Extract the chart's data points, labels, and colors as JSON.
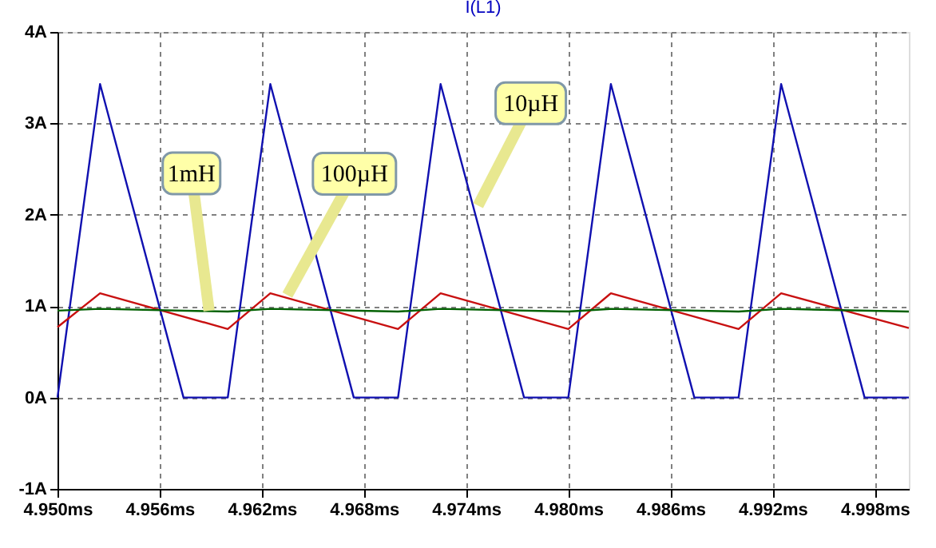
{
  "chart_data": {
    "type": "line",
    "title": "I(L1)",
    "series": [
      {
        "color": "#1010b0",
        "x": [
          4.95,
          4.9525,
          4.9574,
          4.96,
          4.9625,
          4.9674,
          4.97,
          4.9725,
          4.9774,
          4.98,
          4.9825,
          4.9874,
          4.99,
          4.9925,
          4.9974,
          5.0
        ],
        "values": [
          0,
          3.43,
          0,
          0,
          3.43,
          0,
          0,
          3.43,
          0,
          0,
          3.43,
          0,
          0,
          3.43,
          0,
          0
        ]
      },
      {
        "color": "#c81010",
        "x": [
          4.95,
          4.9525,
          4.96,
          4.9625,
          4.97,
          4.9725,
          4.98,
          4.9825,
          4.99,
          4.9925,
          5.0
        ],
        "values": [
          0.77,
          1.14,
          0.75,
          1.14,
          0.75,
          1.14,
          0.75,
          1.14,
          0.75,
          1.14,
          0.76
        ]
      },
      {
        "color": "#006000",
        "x": [
          4.95,
          4.9525,
          4.96,
          4.9625,
          4.97,
          4.9725,
          4.98,
          4.9825,
          4.99,
          4.9925,
          5.0
        ],
        "values": [
          0.95,
          0.97,
          0.94,
          0.97,
          0.94,
          0.97,
          0.94,
          0.97,
          0.94,
          0.97,
          0.94
        ]
      }
    ],
    "xlim": [
      4.95,
      5.0
    ],
    "xticks": [
      {
        "value": 4.95,
        "label": "4.950ms"
      },
      {
        "value": 4.956,
        "label": "4.956ms"
      },
      {
        "value": 4.962,
        "label": "4.962ms"
      },
      {
        "value": 4.968,
        "label": "4.968ms"
      },
      {
        "value": 4.974,
        "label": "4.974ms"
      },
      {
        "value": 4.98,
        "label": "4.980ms"
      },
      {
        "value": 4.986,
        "label": "4.986ms"
      },
      {
        "value": 4.992,
        "label": "4.992ms"
      },
      {
        "value": 4.998,
        "label": "4.998ms"
      }
    ],
    "ylim": [
      -1,
      4
    ],
    "yticks": [
      {
        "value": -1,
        "label": "-1A"
      },
      {
        "value": 0,
        "label": "0A"
      },
      {
        "value": 1,
        "label": "1A"
      },
      {
        "value": 2,
        "label": "2A"
      },
      {
        "value": 3,
        "label": "3A"
      },
      {
        "value": 4,
        "label": "4A"
      }
    ],
    "grid": true,
    "marker": "none",
    "line_style": "solid",
    "annotations": [
      {
        "text": "1mH",
        "x": 4.9589,
        "y": 0.95
      },
      {
        "text": "100µH",
        "x": 4.9635,
        "y": 1.12
      },
      {
        "text": "10µH",
        "x": 4.9747,
        "y": 2.1
      }
    ]
  }
}
